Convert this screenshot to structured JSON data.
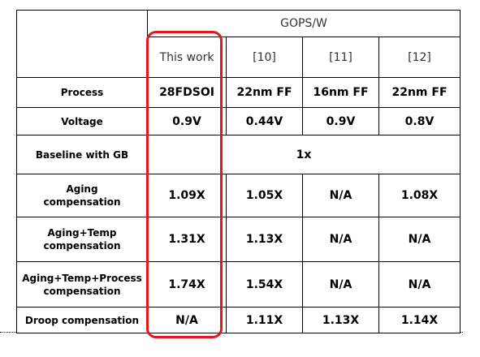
{
  "table": {
    "group_header": "GOPS/W",
    "columns": [
      "This work",
      "[10]",
      "[11]",
      "[12]"
    ],
    "rows": [
      {
        "label": [
          "Process"
        ],
        "cells": [
          "28FDSOI",
          "22nm FF",
          "16nm FF",
          "22nm FF"
        ]
      },
      {
        "label": [
          "Voltage"
        ],
        "cells": [
          "0.9V",
          "0.44V",
          "0.9V",
          "0.8V"
        ]
      },
      {
        "label": [
          "Baseline with GB"
        ],
        "cells": [
          "1x"
        ]
      },
      {
        "label": [
          "Aging",
          "compensation"
        ],
        "cells": [
          "1.09X",
          "1.05X",
          "N/A",
          "1.08X"
        ]
      },
      {
        "label": [
          "Aging+Temp",
          "compensation"
        ],
        "cells": [
          "1.31X",
          "1.13X",
          "N/A",
          "N/A"
        ]
      },
      {
        "label": [
          "Aging+Temp+Process",
          "compensation"
        ],
        "cells": [
          "1.74X",
          "1.54X",
          "N/A",
          "N/A"
        ]
      },
      {
        "label": [
          "Droop compensation"
        ],
        "cells": [
          "N/A",
          "1.11X",
          "1.13X",
          "1.14X"
        ]
      }
    ]
  }
}
